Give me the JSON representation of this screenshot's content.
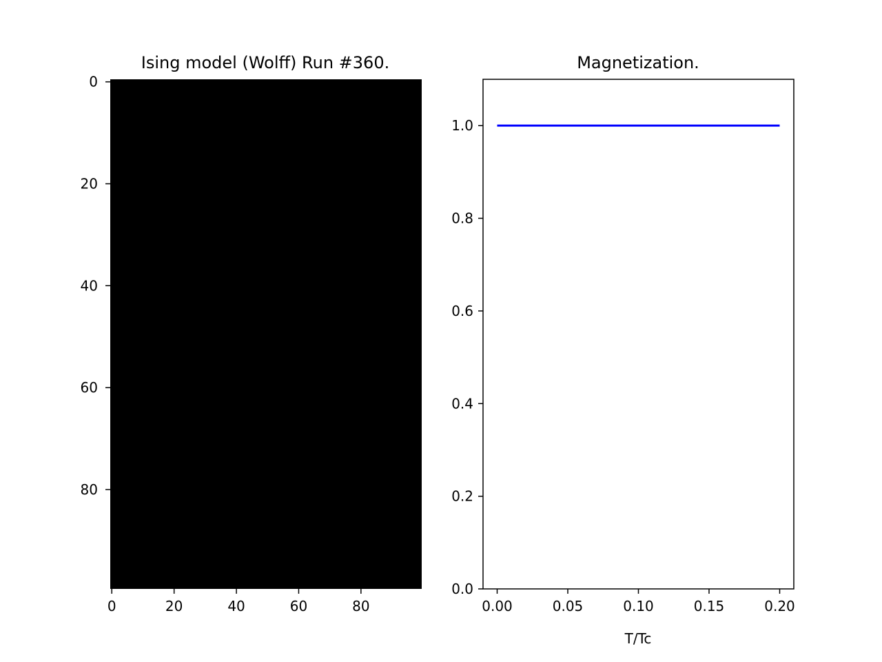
{
  "chart_data": [
    {
      "type": "heatmap",
      "title": "Ising model (Wolff) Run #360.",
      "grid_size": [
        100,
        100
      ],
      "value_description": "all cells same spin (uniform)",
      "cell_color": "#000000",
      "xlim": [
        0,
        99
      ],
      "ylim": [
        99,
        0
      ],
      "xticks": [
        0,
        20,
        40,
        60,
        80
      ],
      "yticks": [
        0,
        20,
        40,
        60,
        80
      ],
      "grid": false
    },
    {
      "type": "line",
      "title": "Magnetization.",
      "xlabel": "T/Tc",
      "ylabel": "",
      "xlim": [
        -0.01,
        0.21
      ],
      "ylim": [
        0.0,
        1.1
      ],
      "xticks": [
        "0.00",
        "0.05",
        "0.10",
        "0.15",
        "0.20"
      ],
      "yticks": [
        "0.0",
        "0.2",
        "0.4",
        "0.6",
        "0.8",
        "1.0"
      ],
      "grid": false,
      "series": [
        {
          "color": "#0000ff",
          "x": [
            0.0,
            0.05,
            0.1,
            0.15,
            0.2
          ],
          "y": [
            1.0,
            1.0,
            1.0,
            1.0,
            1.0
          ]
        }
      ]
    }
  ]
}
